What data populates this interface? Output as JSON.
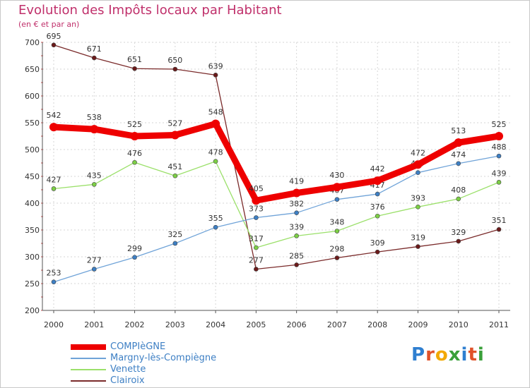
{
  "header": {
    "title": "Evolution des Impôts locaux par Habitant",
    "subtitle": "(en € et par an)"
  },
  "logo": {
    "letters": [
      "P",
      "r",
      "o",
      "x",
      "i",
      "t",
      "i"
    ],
    "colors": [
      "#2f7fd0",
      "#e0522a",
      "#f2a900",
      "#3aa03a",
      "#2f7fd0",
      "#e0522a",
      "#3aa03a"
    ]
  },
  "chart_data": {
    "type": "line",
    "title": "Evolution des Impôts locaux par Habitant",
    "subtitle": "(en € et par an)",
    "xlabel": "",
    "ylabel": "",
    "categories": [
      "2000",
      "2001",
      "2002",
      "2003",
      "2004",
      "2005",
      "2006",
      "2007",
      "2008",
      "2009",
      "2010",
      "2011"
    ],
    "ylim": [
      200,
      700
    ],
    "yticks": [
      200,
      250,
      300,
      350,
      400,
      450,
      500,
      550,
      600,
      650,
      700
    ],
    "grid": true,
    "legend_position": "bottom-left",
    "series": [
      {
        "name": "Clairoix",
        "color": "#7a2a2a",
        "marker": "#6b1a1a",
        "width": "thin",
        "values": [
          695,
          671,
          651,
          650,
          639,
          277,
          285,
          298,
          309,
          319,
          329,
          351
        ],
        "labels": [
          "695",
          "671",
          "651",
          "650",
          "639",
          "277",
          "285",
          "298",
          "309",
          "319",
          "329",
          "351"
        ]
      },
      {
        "name": "Venette",
        "color": "#9be06a",
        "marker": "#7ccf45",
        "width": "thin",
        "values": [
          427,
          435,
          476,
          451,
          478,
          317,
          339,
          348,
          376,
          393,
          408,
          439
        ],
        "labels": [
          "427",
          "435",
          "476",
          "451",
          "478",
          "317",
          "339",
          "348",
          "376",
          "393",
          "408",
          "439"
        ]
      },
      {
        "name": "Margny-lès-Compiègne",
        "color": "#6fa3d8",
        "marker": "#3d7fc4",
        "width": "thin",
        "values": [
          253,
          277,
          299,
          325,
          355,
          373,
          382,
          407,
          417,
          457,
          474,
          488
        ],
        "labels": [
          "253",
          "277",
          "299",
          "325",
          "355",
          "373",
          "382",
          "407",
          "417",
          "457",
          "474",
          "488"
        ]
      },
      {
        "name": "COMPIèGNE",
        "color": "#ee0000",
        "marker": "#ee0000",
        "width": "thick",
        "values": [
          542,
          538,
          525,
          527,
          548,
          405,
          419,
          430,
          442,
          472,
          513,
          525
        ],
        "labels": [
          "542",
          "538",
          "525",
          "527",
          "548",
          "405",
          "419",
          "430",
          "442",
          "472",
          "513",
          "525"
        ]
      }
    ],
    "legend": [
      {
        "name": "COMPIèGNE",
        "color": "#ee0000"
      },
      {
        "name": "Margny-lès-Compiègne",
        "color": "#6fa3d8"
      },
      {
        "name": "Venette",
        "color": "#9be06a"
      },
      {
        "name": "Clairoix",
        "color": "#7a2a2a"
      }
    ]
  }
}
